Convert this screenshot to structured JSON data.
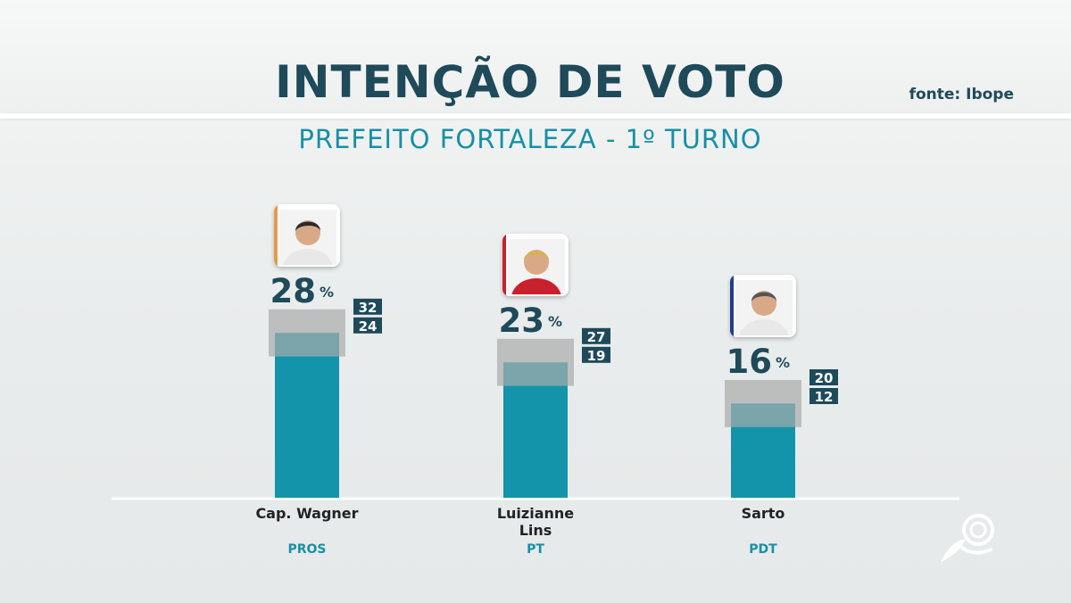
{
  "header": {
    "title": "INTENÇÃO DE VOTO",
    "subtitle": "PREFEITO FORTALEZA - 1º TURNO",
    "source": "fonte: Ibope"
  },
  "colors": {
    "bar": "#1394aa",
    "interval": "#a9abab",
    "title": "#1e4a5a",
    "subtitle": "#1690a6",
    "range_box": "#1e4a5a"
  },
  "chart_data": {
    "type": "bar",
    "unit": "%",
    "categories": [
      "Cap. Wagner",
      "Luizianne\nLins",
      "Sarto"
    ],
    "parties": [
      "PROS",
      "PT",
      "PDT"
    ],
    "values": [
      28,
      23,
      16
    ],
    "upper": [
      32,
      27,
      20
    ],
    "lower": [
      24,
      19,
      12
    ],
    "accent_colors": [
      "#e49a4a",
      "#c8202c",
      "#1f3d8c"
    ],
    "avatar_icons": [
      "candidate-photo-icon",
      "candidate-photo-icon",
      "candidate-photo-icon"
    ]
  }
}
